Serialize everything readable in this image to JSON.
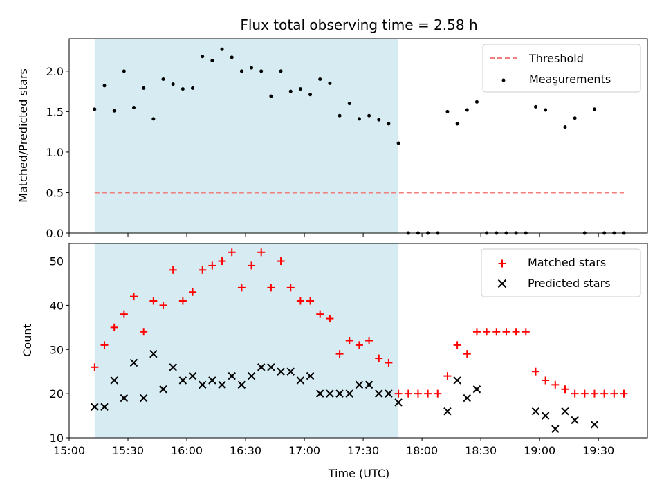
{
  "chart_data": {
    "type": "scatter",
    "title": "Flux total observing time = 2.58 h",
    "shaded_interval": [
      "15:13",
      "17:48"
    ],
    "shade_color": "#add8e6",
    "x_axis": {
      "label": "Time (UTC)",
      "range": [
        "15:00",
        "19:55"
      ],
      "ticks": [
        "15:00",
        "15:30",
        "16:00",
        "16:30",
        "17:00",
        "17:30",
        "18:00",
        "18:30",
        "19:00",
        "19:30"
      ]
    },
    "panels": [
      {
        "ylabel": "Matched/Predicted stars",
        "ylim": [
          0,
          2.4
        ],
        "yticks": [
          "0.0",
          "0.5",
          "1.0",
          "1.5",
          "2.0"
        ],
        "yticks_values": [
          0,
          0.5,
          1.0,
          1.5,
          2.0
        ],
        "legend_position": "upper right",
        "threshold": {
          "name": "Threshold",
          "value": 0.5,
          "x_range": [
            "15:13",
            "19:43"
          ],
          "color": "#f08080"
        },
        "measurements": {
          "name": "Measurements",
          "color": "#000000",
          "points": [
            [
              "15:13",
              1.53
            ],
            [
              "15:18",
              1.82
            ],
            [
              "15:23",
              1.51
            ],
            [
              "15:28",
              2.0
            ],
            [
              "15:33",
              1.55
            ],
            [
              "15:38",
              1.79
            ],
            [
              "15:43",
              1.41
            ],
            [
              "15:48",
              1.9
            ],
            [
              "15:53",
              1.84
            ],
            [
              "15:58",
              1.78
            ],
            [
              "16:03",
              1.79
            ],
            [
              "16:08",
              2.18
            ],
            [
              "16:13",
              2.13
            ],
            [
              "16:18",
              2.27
            ],
            [
              "16:23",
              2.17
            ],
            [
              "16:28",
              2.0
            ],
            [
              "16:33",
              2.04
            ],
            [
              "16:38",
              2.0
            ],
            [
              "16:43",
              1.69
            ],
            [
              "16:48",
              2.0
            ],
            [
              "16:53",
              1.75
            ],
            [
              "16:58",
              1.78
            ],
            [
              "17:03",
              1.71
            ],
            [
              "17:08",
              1.9
            ],
            [
              "17:13",
              1.85
            ],
            [
              "17:18",
              1.45
            ],
            [
              "17:23",
              1.6
            ],
            [
              "17:28",
              1.41
            ],
            [
              "17:33",
              1.45
            ],
            [
              "17:38",
              1.4
            ],
            [
              "17:43",
              1.35
            ],
            [
              "17:48",
              1.11
            ],
            [
              "17:53",
              0.0
            ],
            [
              "17:58",
              0.0
            ],
            [
              "18:03",
              0.0
            ],
            [
              "18:08",
              0.0
            ],
            [
              "18:13",
              1.5
            ],
            [
              "18:18",
              1.35
            ],
            [
              "18:23",
              1.52
            ],
            [
              "18:28",
              1.62
            ],
            [
              "18:33",
              0.0
            ],
            [
              "18:38",
              0.0
            ],
            [
              "18:43",
              0.0
            ],
            [
              "18:48",
              0.0
            ],
            [
              "18:53",
              0.0
            ],
            [
              "18:58",
              1.56
            ],
            [
              "19:03",
              1.52
            ],
            [
              "19:08",
              1.84
            ],
            [
              "19:13",
              1.31
            ],
            [
              "19:18",
              1.42
            ],
            [
              "19:23",
              0.0
            ],
            [
              "19:28",
              1.53
            ],
            [
              "19:33",
              0.0
            ],
            [
              "19:38",
              0.0
            ],
            [
              "19:43",
              0.0
            ]
          ]
        }
      },
      {
        "ylabel": "Count",
        "ylim": [
          10,
          54
        ],
        "yticks": [
          "10",
          "20",
          "30",
          "40",
          "50"
        ],
        "yticks_values": [
          10,
          20,
          30,
          40,
          50
        ],
        "legend_position": "upper right",
        "series": [
          {
            "name": "Matched stars",
            "marker": "plus",
            "color": "#ff0000",
            "points": [
              [
                "15:13",
                26
              ],
              [
                "15:18",
                31
              ],
              [
                "15:23",
                35
              ],
              [
                "15:28",
                38
              ],
              [
                "15:33",
                42
              ],
              [
                "15:38",
                34
              ],
              [
                "15:43",
                41
              ],
              [
                "15:48",
                40
              ],
              [
                "15:53",
                48
              ],
              [
                "15:58",
                41
              ],
              [
                "16:03",
                43
              ],
              [
                "16:08",
                48
              ],
              [
                "16:13",
                49
              ],
              [
                "16:18",
                50
              ],
              [
                "16:23",
                52
              ],
              [
                "16:28",
                44
              ],
              [
                "16:33",
                49
              ],
              [
                "16:38",
                52
              ],
              [
                "16:43",
                44
              ],
              [
                "16:48",
                50
              ],
              [
                "16:53",
                44
              ],
              [
                "16:58",
                41
              ],
              [
                "17:03",
                41
              ],
              [
                "17:08",
                38
              ],
              [
                "17:13",
                37
              ],
              [
                "17:18",
                29
              ],
              [
                "17:23",
                32
              ],
              [
                "17:28",
                31
              ],
              [
                "17:33",
                32
              ],
              [
                "17:38",
                28
              ],
              [
                "17:43",
                27
              ],
              [
                "17:48",
                20
              ],
              [
                "17:53",
                20
              ],
              [
                "17:58",
                20
              ],
              [
                "18:03",
                20
              ],
              [
                "18:08",
                20
              ],
              [
                "18:13",
                24
              ],
              [
                "18:18",
                31
              ],
              [
                "18:23",
                29
              ],
              [
                "18:28",
                34
              ],
              [
                "18:33",
                34
              ],
              [
                "18:38",
                34
              ],
              [
                "18:43",
                34
              ],
              [
                "18:48",
                34
              ],
              [
                "18:53",
                34
              ],
              [
                "18:58",
                25
              ],
              [
                "19:03",
                23
              ],
              [
                "19:08",
                22
              ],
              [
                "19:13",
                21
              ],
              [
                "19:18",
                20
              ],
              [
                "19:23",
                20
              ],
              [
                "19:28",
                20
              ],
              [
                "19:33",
                20
              ],
              [
                "19:38",
                20
              ],
              [
                "19:43",
                20
              ]
            ]
          },
          {
            "name": "Predicted stars",
            "marker": "x",
            "color": "#000000",
            "points": [
              [
                "15:13",
                17
              ],
              [
                "15:18",
                17
              ],
              [
                "15:23",
                23
              ],
              [
                "15:28",
                19
              ],
              [
                "15:33",
                27
              ],
              [
                "15:38",
                19
              ],
              [
                "15:43",
                29
              ],
              [
                "15:48",
                21
              ],
              [
                "15:53",
                26
              ],
              [
                "15:58",
                23
              ],
              [
                "16:03",
                24
              ],
              [
                "16:08",
                22
              ],
              [
                "16:13",
                23
              ],
              [
                "16:18",
                22
              ],
              [
                "16:23",
                24
              ],
              [
                "16:28",
                22
              ],
              [
                "16:33",
                24
              ],
              [
                "16:38",
                26
              ],
              [
                "16:43",
                26
              ],
              [
                "16:48",
                25
              ],
              [
                "16:53",
                25
              ],
              [
                "16:58",
                23
              ],
              [
                "17:03",
                24
              ],
              [
                "17:08",
                20
              ],
              [
                "17:13",
                20
              ],
              [
                "17:18",
                20
              ],
              [
                "17:23",
                20
              ],
              [
                "17:28",
                22
              ],
              [
                "17:33",
                22
              ],
              [
                "17:38",
                20
              ],
              [
                "17:43",
                20
              ],
              [
                "17:48",
                18
              ],
              [
                "18:13",
                16
              ],
              [
                "18:18",
                23
              ],
              [
                "18:23",
                19
              ],
              [
                "18:28",
                21
              ],
              [
                "18:58",
                16
              ],
              [
                "19:03",
                15
              ],
              [
                "19:08",
                12
              ],
              [
                "19:13",
                16
              ],
              [
                "19:18",
                14
              ],
              [
                "19:28",
                13
              ]
            ]
          }
        ]
      }
    ]
  }
}
